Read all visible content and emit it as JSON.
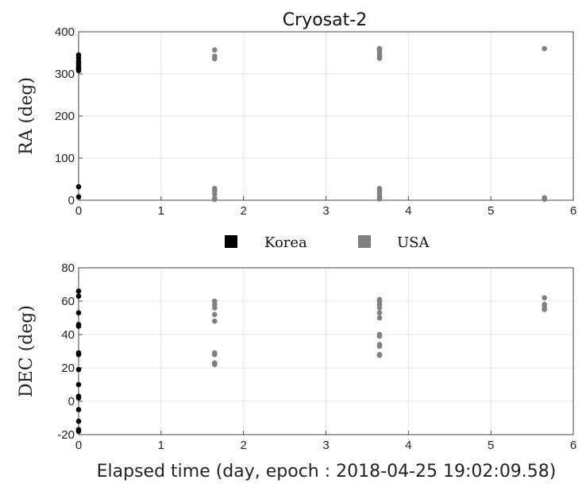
{
  "title": "Cryosat-2",
  "legend": [
    {
      "label": "Korea",
      "color": "#000000"
    },
    {
      "label": "USA",
      "color": "#808080"
    }
  ],
  "xlabel": "Elapsed time (day, epoch : 2018-04-25 19:02:09.58)",
  "chart_data": [
    {
      "type": "scatter",
      "title": "Cryosat-2",
      "xlabel": "",
      "ylabel": "RA (deg)",
      "xlim": [
        0,
        6
      ],
      "ylim": [
        0,
        400
      ],
      "xticks": [
        "0",
        "1",
        "2",
        "3",
        "4",
        "5",
        "6"
      ],
      "yticks": [
        "0",
        "100",
        "200",
        "300",
        "400"
      ],
      "grid": true,
      "series": [
        {
          "name": "Korea",
          "color": "#000000",
          "x": [
            0,
            0,
            0,
            0,
            0,
            0,
            0,
            0,
            0,
            0
          ],
          "y": [
            345,
            338,
            330,
            325,
            320,
            315,
            312,
            308,
            32,
            8
          ]
        },
        {
          "name": "USA",
          "color": "#808080",
          "x": [
            1.65,
            1.65,
            1.65,
            1.65,
            1.65,
            1.65,
            1.65,
            1.65,
            3.65,
            3.65,
            3.65,
            3.65,
            3.65,
            3.65,
            3.65,
            3.65,
            3.65,
            3.65,
            3.65,
            3.65,
            5.65,
            5.65,
            5.65,
            5.65
          ],
          "y": [
            357,
            342,
            336,
            28,
            22,
            15,
            5,
            2,
            360,
            355,
            348,
            342,
            337,
            28,
            22,
            15,
            8,
            3,
            360,
            22,
            6,
            2,
            3,
            360
          ]
        }
      ]
    },
    {
      "type": "scatter",
      "title": "",
      "xlabel": "Elapsed time (day, epoch : 2018-04-25 19:02:09.58)",
      "ylabel": "DEC (deg)",
      "xlim": [
        0,
        6
      ],
      "ylim": [
        -20,
        80
      ],
      "xticks": [
        "0",
        "1",
        "2",
        "3",
        "4",
        "5",
        "6"
      ],
      "yticks": [
        "-20",
        "0",
        "20",
        "40",
        "60",
        "80"
      ],
      "grid": true,
      "series": [
        {
          "name": "Korea",
          "color": "#000000",
          "x": [
            0,
            0,
            0,
            0,
            0,
            0,
            0,
            0,
            0,
            0,
            0,
            0,
            0,
            0,
            0
          ],
          "y": [
            66,
            63,
            53,
            46,
            45,
            29,
            28,
            19,
            10,
            3,
            2,
            -5,
            -12,
            -17,
            -18
          ]
        },
        {
          "name": "USA",
          "color": "#808080",
          "x": [
            1.65,
            1.65,
            1.65,
            1.65,
            1.65,
            1.65,
            1.65,
            1.65,
            1.65,
            1.65,
            3.65,
            3.65,
            3.65,
            3.65,
            3.65,
            3.65,
            3.65,
            3.65,
            3.65,
            3.65,
            3.65,
            3.65,
            5.65,
            5.65,
            5.65,
            5.65
          ],
          "y": [
            60,
            58,
            56,
            52,
            48,
            29,
            28,
            23,
            22,
            22.5,
            61,
            60,
            58,
            56,
            53,
            50,
            40,
            39,
            34,
            33,
            28,
            27.5,
            62,
            58,
            56,
            55
          ]
        }
      ]
    }
  ]
}
